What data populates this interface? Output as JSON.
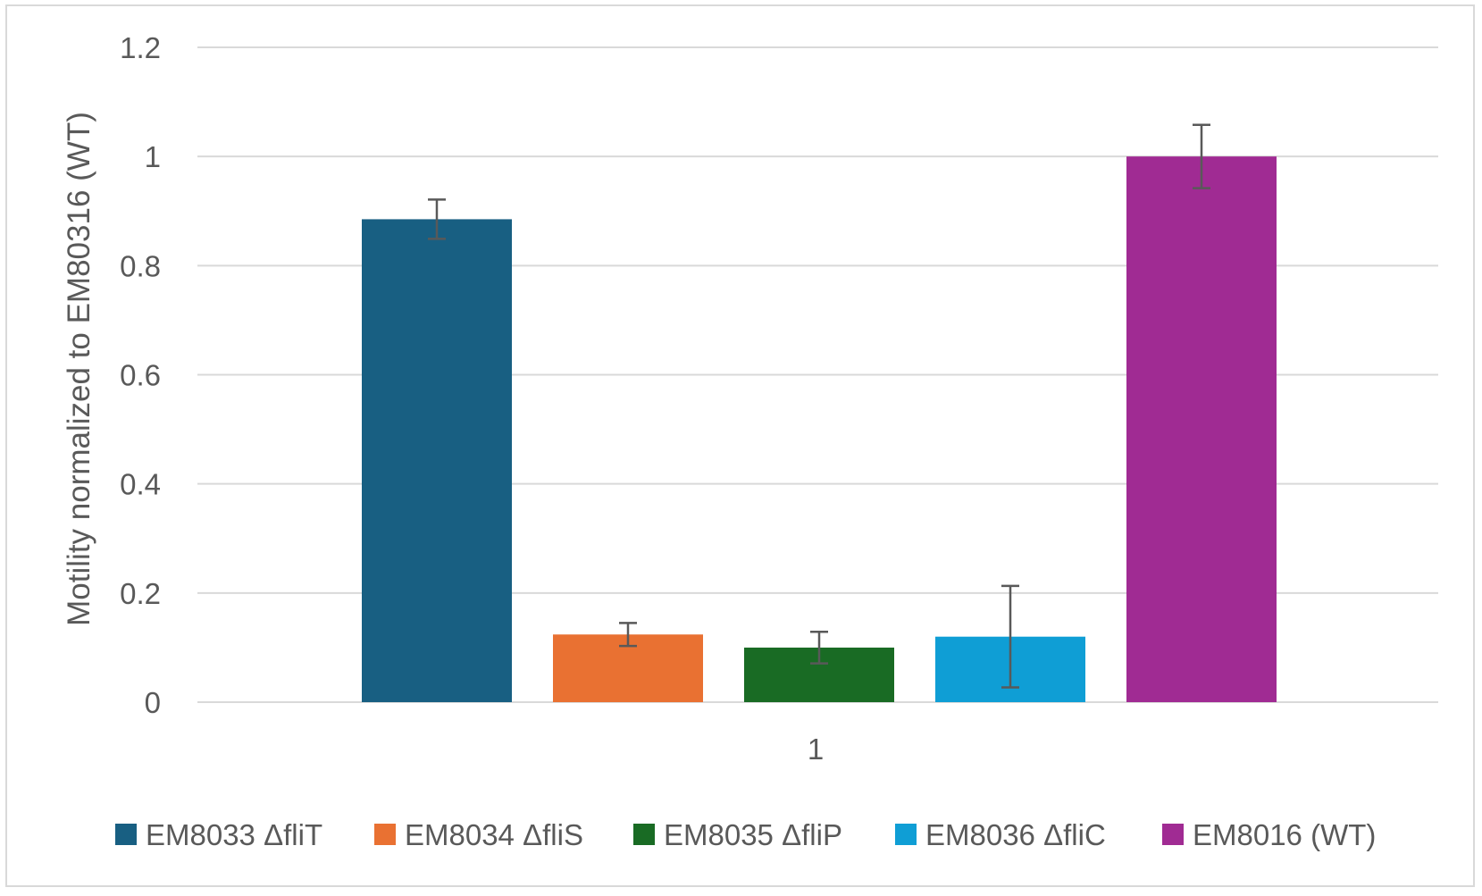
{
  "chart_data": {
    "type": "bar",
    "categories": [
      "1"
    ],
    "series": [
      {
        "name": "EM8033 ΔfliT",
        "values": [
          0.885
        ],
        "error": [
          0.036
        ],
        "color": "#185f82"
      },
      {
        "name": "EM8034 ΔfliS",
        "values": [
          0.124
        ],
        "error": [
          0.021
        ],
        "color": "#e97132"
      },
      {
        "name": "EM8035 ΔfliP",
        "values": [
          0.1
        ],
        "error": [
          0.029
        ],
        "color": "#196b24"
      },
      {
        "name": "EM8036 ΔfliC",
        "values": [
          0.12
        ],
        "error": [
          0.093
        ],
        "color": "#0f9ed5"
      },
      {
        "name": "EM8016 (WT)",
        "values": [
          1.0
        ],
        "error": [
          0.058
        ],
        "color": "#a02b93"
      }
    ],
    "title": "",
    "xlabel": "",
    "ylabel": "Motility normalized to EM80316 (WT)",
    "ylim": [
      0,
      1.2
    ],
    "yticks": [
      "0",
      "0.2",
      "0.4",
      "0.6",
      "0.8",
      "1",
      "1.2"
    ],
    "grid": true,
    "legend_position": "bottom",
    "gridline_color": "#d9d9d9",
    "errorbar_color": "#595959"
  }
}
